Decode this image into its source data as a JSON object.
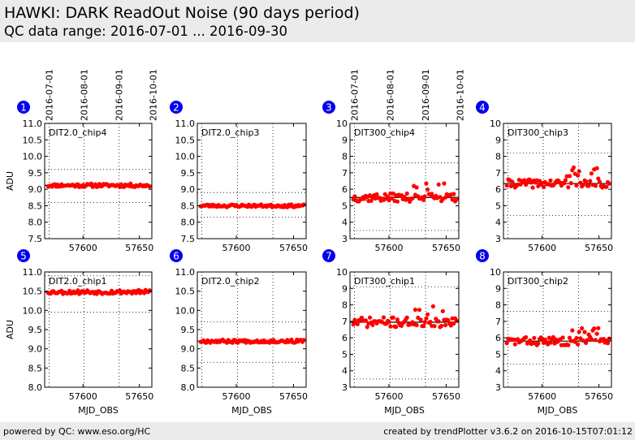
{
  "header": {
    "title": "HAWKI: DARK ReadOut Noise (90 days period)",
    "subtitle": "QC data range: 2016-07-01 ... 2016-09-30"
  },
  "footer": {
    "left": "powered by QC: www.eso.org/HC",
    "right": "created by trendPlotter v3.6.2 on 2016-10-15T07:01:12"
  },
  "colors": {
    "points": "#ff0000",
    "line": "#000000",
    "badge": "#0000ee"
  },
  "date_ticks": [
    {
      "label": "2016-07-01",
      "mjd": 57570
    },
    {
      "label": "2016-08-01",
      "mjd": 57601
    },
    {
      "label": "2016-09-01",
      "mjd": 57632
    },
    {
      "label": "2016-10-01",
      "mjd": 57662
    }
  ],
  "chart_data": [
    {
      "type": "scatter",
      "badge": "1",
      "label": "DIT2.0_chip4",
      "ylabel": "ADU",
      "xlabel": "",
      "xlim": [
        57566,
        57661
      ],
      "ylim": [
        7.5,
        11.0
      ],
      "yticks": [
        7.5,
        8.0,
        8.5,
        9.0,
        9.5,
        10.0,
        10.5,
        11.0
      ],
      "ytick_labels": [
        "7.5",
        "8.0",
        "8.5",
        "9.0",
        "9.5",
        "10.0",
        "10.5",
        "11.0"
      ],
      "xticks": [
        57600,
        57650
      ],
      "mean": 9.12,
      "dotted": [
        8.6,
        9.6
      ],
      "seed": 11,
      "noise": 0.05,
      "x": [],
      "y": []
    },
    {
      "type": "scatter",
      "badge": "2",
      "label": "DIT2.0_chip3",
      "ylabel": "",
      "xlabel": "",
      "xlim": [
        57566,
        57661
      ],
      "ylim": [
        7.5,
        11.0
      ],
      "yticks": [
        7.5,
        8.0,
        8.5,
        9.0,
        9.5,
        10.0,
        10.5,
        11.0
      ],
      "ytick_labels": [
        "7.5",
        "8.0",
        "8.5",
        "9.0",
        "9.5",
        "10.0",
        "10.5",
        "11.0"
      ],
      "xticks": [
        57600,
        57650
      ],
      "mean": 8.5,
      "dotted": [
        8.15,
        8.9
      ],
      "seed": 23,
      "noise": 0.04,
      "x": [],
      "y": []
    },
    {
      "type": "scatter",
      "badge": "3",
      "label": "DIT300_chip4",
      "ylabel": "",
      "xlabel": "",
      "xlim": [
        57566,
        57661
      ],
      "ylim": [
        3,
        10
      ],
      "yticks": [
        3,
        4,
        5,
        6,
        7,
        8,
        9,
        10
      ],
      "ytick_labels": [
        "3",
        "4",
        "5",
        "6",
        "7",
        "8",
        "9",
        "10"
      ],
      "xticks": [
        57600,
        57650
      ],
      "mean": 5.5,
      "dotted": [
        3.5,
        7.6
      ],
      "seed": 37,
      "noise": 0.25,
      "x": [],
      "y": []
    },
    {
      "type": "scatter",
      "badge": "4",
      "label": "DIT300_chip3",
      "ylabel": "",
      "xlabel": "",
      "xlim": [
        57566,
        57661
      ],
      "ylim": [
        3,
        10
      ],
      "yticks": [
        3,
        4,
        5,
        6,
        7,
        8,
        9,
        10
      ],
      "ytick_labels": [
        "3",
        "4",
        "5",
        "6",
        "7",
        "8",
        "9",
        "10"
      ],
      "xticks": [
        57600,
        57650
      ],
      "mean": 6.35,
      "dotted": [
        4.4,
        8.2
      ],
      "seed": 41,
      "noise": 0.25,
      "x": [],
      "y": []
    },
    {
      "type": "scatter",
      "badge": "5",
      "label": "DIT2.0_chip1",
      "ylabel": "ADU",
      "xlabel": "MJD_OBS",
      "xlim": [
        57566,
        57661
      ],
      "ylim": [
        8.0,
        11.0
      ],
      "yticks": [
        8.0,
        8.5,
        9.0,
        9.5,
        10.0,
        10.5,
        11.0
      ],
      "ytick_labels": [
        "8.0",
        "8.5",
        "9.0",
        "9.5",
        "10.0",
        "10.5",
        "11.0"
      ],
      "xticks": [
        57600,
        57650
      ],
      "mean": 10.48,
      "dotted": [
        9.95,
        10.9
      ],
      "seed": 53,
      "noise": 0.05,
      "x": [],
      "y": []
    },
    {
      "type": "scatter",
      "badge": "6",
      "label": "DIT2.0_chip2",
      "ylabel": "",
      "xlabel": "MJD_OBS",
      "xlim": [
        57566,
        57661
      ],
      "ylim": [
        8.0,
        11.0
      ],
      "yticks": [
        8.0,
        8.5,
        9.0,
        9.5,
        10.0,
        10.5,
        11.0
      ],
      "ytick_labels": [
        "8.0",
        "8.5",
        "9.0",
        "9.5",
        "10.0",
        "10.5",
        "11.0"
      ],
      "xticks": [
        57600,
        57650
      ],
      "mean": 9.2,
      "dotted": [
        8.65,
        9.7
      ],
      "seed": 67,
      "noise": 0.04,
      "x": [],
      "y": []
    },
    {
      "type": "scatter",
      "badge": "7",
      "label": "DIT300_chip1",
      "ylabel": "",
      "xlabel": "MJD_OBS",
      "xlim": [
        57566,
        57661
      ],
      "ylim": [
        3,
        10
      ],
      "yticks": [
        3,
        4,
        5,
        6,
        7,
        8,
        9,
        10
      ],
      "ytick_labels": [
        "3",
        "4",
        "5",
        "6",
        "7",
        "8",
        "9",
        "10"
      ],
      "xticks": [
        57600,
        57650
      ],
      "mean": 6.95,
      "dotted": [
        3.5,
        9.1
      ],
      "seed": 71,
      "noise": 0.3,
      "x": [],
      "y": []
    },
    {
      "type": "scatter",
      "badge": "8",
      "label": "DIT300_chip2",
      "ylabel": "",
      "xlabel": "MJD_OBS",
      "xlim": [
        57566,
        57661
      ],
      "ylim": [
        3,
        10
      ],
      "yticks": [
        3,
        4,
        5,
        6,
        7,
        8,
        9,
        10
      ],
      "ytick_labels": [
        "3",
        "4",
        "5",
        "6",
        "7",
        "8",
        "9",
        "10"
      ],
      "xticks": [
        57600,
        57650
      ],
      "mean": 5.8,
      "dotted": [
        4.4,
        7.6
      ],
      "seed": 83,
      "noise": 0.25,
      "x": [],
      "y": []
    }
  ]
}
